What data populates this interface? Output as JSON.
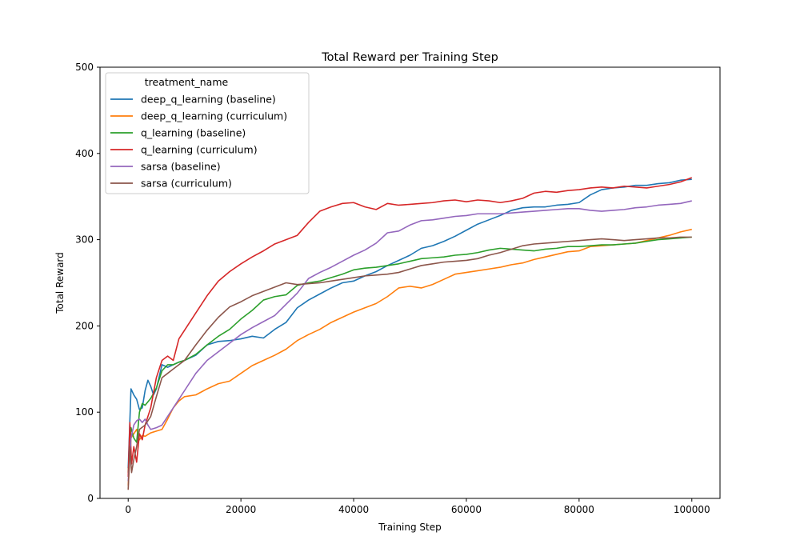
{
  "chart_data": {
    "type": "line",
    "title": "Total Reward per Training Step",
    "xlabel": "Training Step",
    "ylabel": "Total Reward",
    "xlim": [
      -5000,
      105000
    ],
    "ylim": [
      0,
      500
    ],
    "xticks": [
      0,
      20000,
      40000,
      60000,
      80000,
      100000
    ],
    "xtick_labels": [
      "0",
      "20000",
      "40000",
      "60000",
      "80000",
      "100000"
    ],
    "yticks": [
      0,
      100,
      200,
      300,
      400,
      500
    ],
    "ytick_labels": [
      "0",
      "100",
      "200",
      "300",
      "400",
      "500"
    ],
    "grid": false,
    "legend": {
      "title": "treatment_name",
      "placement": "top-left"
    },
    "series": [
      {
        "name": "deep_q_learning (baseline)",
        "color": "#1f77b4",
        "x": [
          0,
          500,
          1000,
          1500,
          2000,
          2500,
          3000,
          3500,
          4000,
          4500,
          5000,
          6000,
          7000,
          8000,
          9000,
          10000,
          12000,
          14000,
          16000,
          18000,
          20000,
          22000,
          24000,
          26000,
          28000,
          30000,
          32000,
          34000,
          36000,
          38000,
          40000,
          42000,
          44000,
          46000,
          48000,
          50000,
          52000,
          54000,
          56000,
          58000,
          60000,
          62000,
          64000,
          66000,
          68000,
          70000,
          72000,
          74000,
          76000,
          78000,
          80000,
          82000,
          84000,
          86000,
          88000,
          90000,
          92000,
          94000,
          96000,
          98000,
          100000
        ],
        "y": [
          35,
          127,
          120,
          115,
          103,
          105,
          125,
          137,
          130,
          120,
          127,
          155,
          152,
          155,
          158,
          160,
          166,
          178,
          182,
          183,
          185,
          188,
          186,
          196,
          204,
          221,
          230,
          237,
          244,
          250,
          252,
          258,
          263,
          270,
          276,
          282,
          290,
          293,
          298,
          304,
          311,
          318,
          323,
          328,
          334,
          337,
          338,
          338,
          340,
          341,
          343,
          352,
          358,
          360,
          361,
          363,
          363,
          365,
          366,
          369,
          370
        ]
      },
      {
        "name": "deep_q_learning (curriculum)",
        "color": "#ff7f0e",
        "x": [
          0,
          500,
          1000,
          1500,
          2000,
          2500,
          3000,
          3500,
          4000,
          5000,
          6000,
          7000,
          8000,
          9000,
          10000,
          12000,
          14000,
          16000,
          18000,
          20000,
          22000,
          24000,
          26000,
          28000,
          30000,
          32000,
          34000,
          36000,
          38000,
          40000,
          42000,
          44000,
          46000,
          48000,
          50000,
          52000,
          54000,
          56000,
          58000,
          60000,
          62000,
          64000,
          66000,
          68000,
          70000,
          72000,
          74000,
          76000,
          78000,
          80000,
          82000,
          84000,
          86000,
          88000,
          90000,
          92000,
          94000,
          96000,
          98000,
          100000
        ],
        "y": [
          15,
          70,
          75,
          80,
          68,
          73,
          72,
          74,
          76,
          78,
          80,
          92,
          105,
          113,
          118,
          120,
          127,
          133,
          136,
          145,
          154,
          160,
          166,
          173,
          183,
          190,
          196,
          204,
          210,
          216,
          221,
          226,
          234,
          244,
          246,
          244,
          248,
          254,
          260,
          262,
          264,
          266,
          268,
          271,
          273,
          277,
          280,
          283,
          286,
          287,
          292,
          293,
          294,
          295,
          296,
          299,
          302,
          305,
          309,
          312
        ]
      },
      {
        "name": "q_learning (baseline)",
        "color": "#2ca02c",
        "x": [
          0,
          500,
          1000,
          1500,
          2000,
          2500,
          3000,
          4000,
          5000,
          6000,
          7000,
          8000,
          9000,
          10000,
          12000,
          14000,
          16000,
          18000,
          20000,
          22000,
          24000,
          26000,
          28000,
          30000,
          32000,
          34000,
          36000,
          38000,
          40000,
          42000,
          44000,
          46000,
          48000,
          50000,
          52000,
          54000,
          56000,
          58000,
          60000,
          62000,
          64000,
          66000,
          68000,
          70000,
          72000,
          74000,
          76000,
          78000,
          80000,
          82000,
          84000,
          86000,
          88000,
          90000,
          92000,
          94000,
          96000,
          98000,
          100000
        ],
        "y": [
          30,
          82,
          70,
          65,
          100,
          110,
          108,
          116,
          128,
          148,
          155,
          155,
          158,
          160,
          167,
          178,
          188,
          196,
          208,
          218,
          230,
          234,
          236,
          247,
          250,
          252,
          256,
          260,
          265,
          267,
          268,
          270,
          272,
          275,
          278,
          279,
          280,
          282,
          283,
          285,
          288,
          290,
          289,
          288,
          287,
          289,
          290,
          292,
          292,
          293,
          294,
          294,
          295,
          296,
          298,
          300,
          301,
          302,
          303
        ]
      },
      {
        "name": "q_learning (curriculum)",
        "color": "#d62728",
        "x": [
          0,
          300,
          600,
          1000,
          1500,
          2000,
          2500,
          3000,
          4000,
          5000,
          6000,
          7000,
          8000,
          9000,
          10000,
          12000,
          14000,
          16000,
          18000,
          20000,
          22000,
          24000,
          26000,
          28000,
          30000,
          32000,
          34000,
          36000,
          38000,
          40000,
          42000,
          44000,
          46000,
          48000,
          50000,
          52000,
          54000,
          56000,
          58000,
          60000,
          62000,
          64000,
          66000,
          68000,
          70000,
          72000,
          74000,
          76000,
          78000,
          80000,
          82000,
          84000,
          86000,
          88000,
          90000,
          92000,
          94000,
          96000,
          98000,
          100000
        ],
        "y": [
          25,
          88,
          40,
          60,
          42,
          75,
          68,
          85,
          105,
          140,
          160,
          165,
          160,
          185,
          195,
          215,
          235,
          252,
          263,
          272,
          280,
          287,
          295,
          300,
          305,
          320,
          333,
          338,
          342,
          343,
          338,
          335,
          342,
          340,
          341,
          342,
          343,
          345,
          346,
          344,
          346,
          345,
          343,
          345,
          348,
          354,
          356,
          355,
          357,
          358,
          360,
          361,
          360,
          362,
          361,
          360,
          362,
          364,
          367,
          372
        ]
      },
      {
        "name": "sarsa (baseline)",
        "color": "#9467bd",
        "x": [
          0,
          500,
          1000,
          1500,
          2000,
          2500,
          3000,
          3500,
          4000,
          5000,
          6000,
          7000,
          8000,
          9000,
          10000,
          12000,
          14000,
          16000,
          18000,
          20000,
          22000,
          24000,
          26000,
          28000,
          30000,
          32000,
          34000,
          36000,
          38000,
          40000,
          42000,
          44000,
          46000,
          48000,
          50000,
          52000,
          54000,
          56000,
          58000,
          60000,
          62000,
          64000,
          66000,
          68000,
          70000,
          72000,
          74000,
          76000,
          78000,
          80000,
          82000,
          84000,
          86000,
          88000,
          90000,
          92000,
          94000,
          96000,
          98000,
          100000
        ],
        "y": [
          20,
          70,
          85,
          90,
          92,
          88,
          92,
          85,
          80,
          82,
          85,
          95,
          105,
          115,
          125,
          145,
          160,
          170,
          180,
          190,
          198,
          205,
          212,
          225,
          238,
          255,
          262,
          268,
          275,
          282,
          288,
          296,
          308,
          310,
          317,
          322,
          323,
          325,
          327,
          328,
          330,
          330,
          330,
          331,
          332,
          333,
          334,
          335,
          336,
          336,
          334,
          333,
          334,
          335,
          337,
          338,
          340,
          341,
          342,
          345
        ]
      },
      {
        "name": "sarsa (curriculum)",
        "color": "#8c564b",
        "x": [
          0,
          300,
          600,
          1000,
          1500,
          2000,
          3000,
          4000,
          5000,
          6000,
          7000,
          8000,
          9000,
          10000,
          12000,
          14000,
          16000,
          18000,
          20000,
          22000,
          24000,
          26000,
          28000,
          30000,
          32000,
          34000,
          36000,
          38000,
          40000,
          42000,
          44000,
          46000,
          48000,
          50000,
          52000,
          54000,
          56000,
          58000,
          60000,
          62000,
          64000,
          66000,
          68000,
          70000,
          72000,
          74000,
          76000,
          78000,
          80000,
          82000,
          84000,
          86000,
          88000,
          90000,
          92000,
          94000,
          96000,
          98000,
          100000
        ],
        "y": [
          10,
          60,
          30,
          45,
          60,
          80,
          85,
          95,
          118,
          140,
          145,
          150,
          155,
          160,
          178,
          195,
          210,
          222,
          228,
          235,
          240,
          245,
          250,
          248,
          249,
          250,
          252,
          254,
          256,
          258,
          259,
          260,
          262,
          266,
          270,
          272,
          274,
          275,
          276,
          278,
          282,
          285,
          289,
          293,
          295,
          296,
          297,
          298,
          299,
          300,
          301,
          300,
          299,
          300,
          301,
          302,
          302,
          303,
          303
        ]
      }
    ]
  }
}
